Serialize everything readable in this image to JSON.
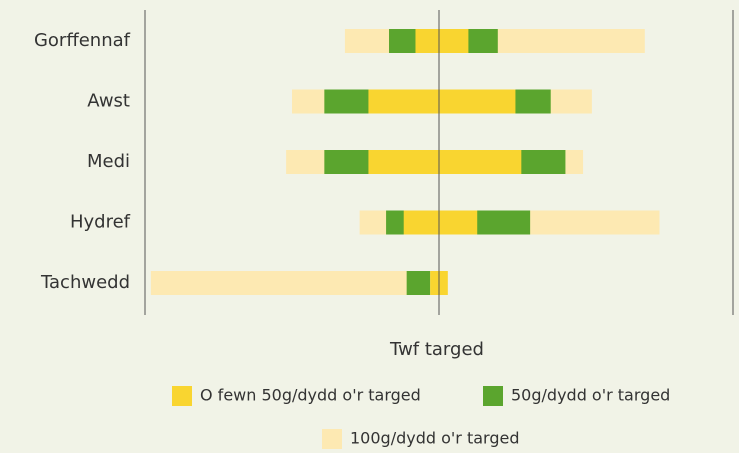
{
  "chart_data": {
    "type": "range-bar",
    "categories": [
      "Gorffennaf",
      "Awst",
      "Medi",
      "Hydref",
      "Tachwedd"
    ],
    "xlabel": "Twf targed",
    "xlim": [
      -100,
      100
    ],
    "target": 0,
    "series": [
      {
        "name": "100g/dydd o'r targed",
        "color": "#fde9b2",
        "values": [
          [
            -32,
            70
          ],
          [
            -50,
            52
          ],
          [
            -52,
            49
          ],
          [
            -27,
            75
          ],
          [
            -98,
            -3
          ]
        ]
      },
      {
        "name": "50g/dydd o'r targed",
        "color": "#5ba52e",
        "values": [
          [
            -17,
            20
          ],
          [
            -39,
            38
          ],
          [
            -39,
            43
          ],
          [
            -18,
            31
          ],
          [
            -11,
            -3
          ]
        ]
      },
      {
        "name": "O fewn 50g/dydd o'r targed",
        "color": "#f9d530",
        "values": [
          [
            -8,
            10
          ],
          [
            -24,
            26
          ],
          [
            -24,
            28
          ],
          [
            -12,
            13
          ],
          [
            -3,
            3
          ]
        ]
      }
    ]
  }
}
